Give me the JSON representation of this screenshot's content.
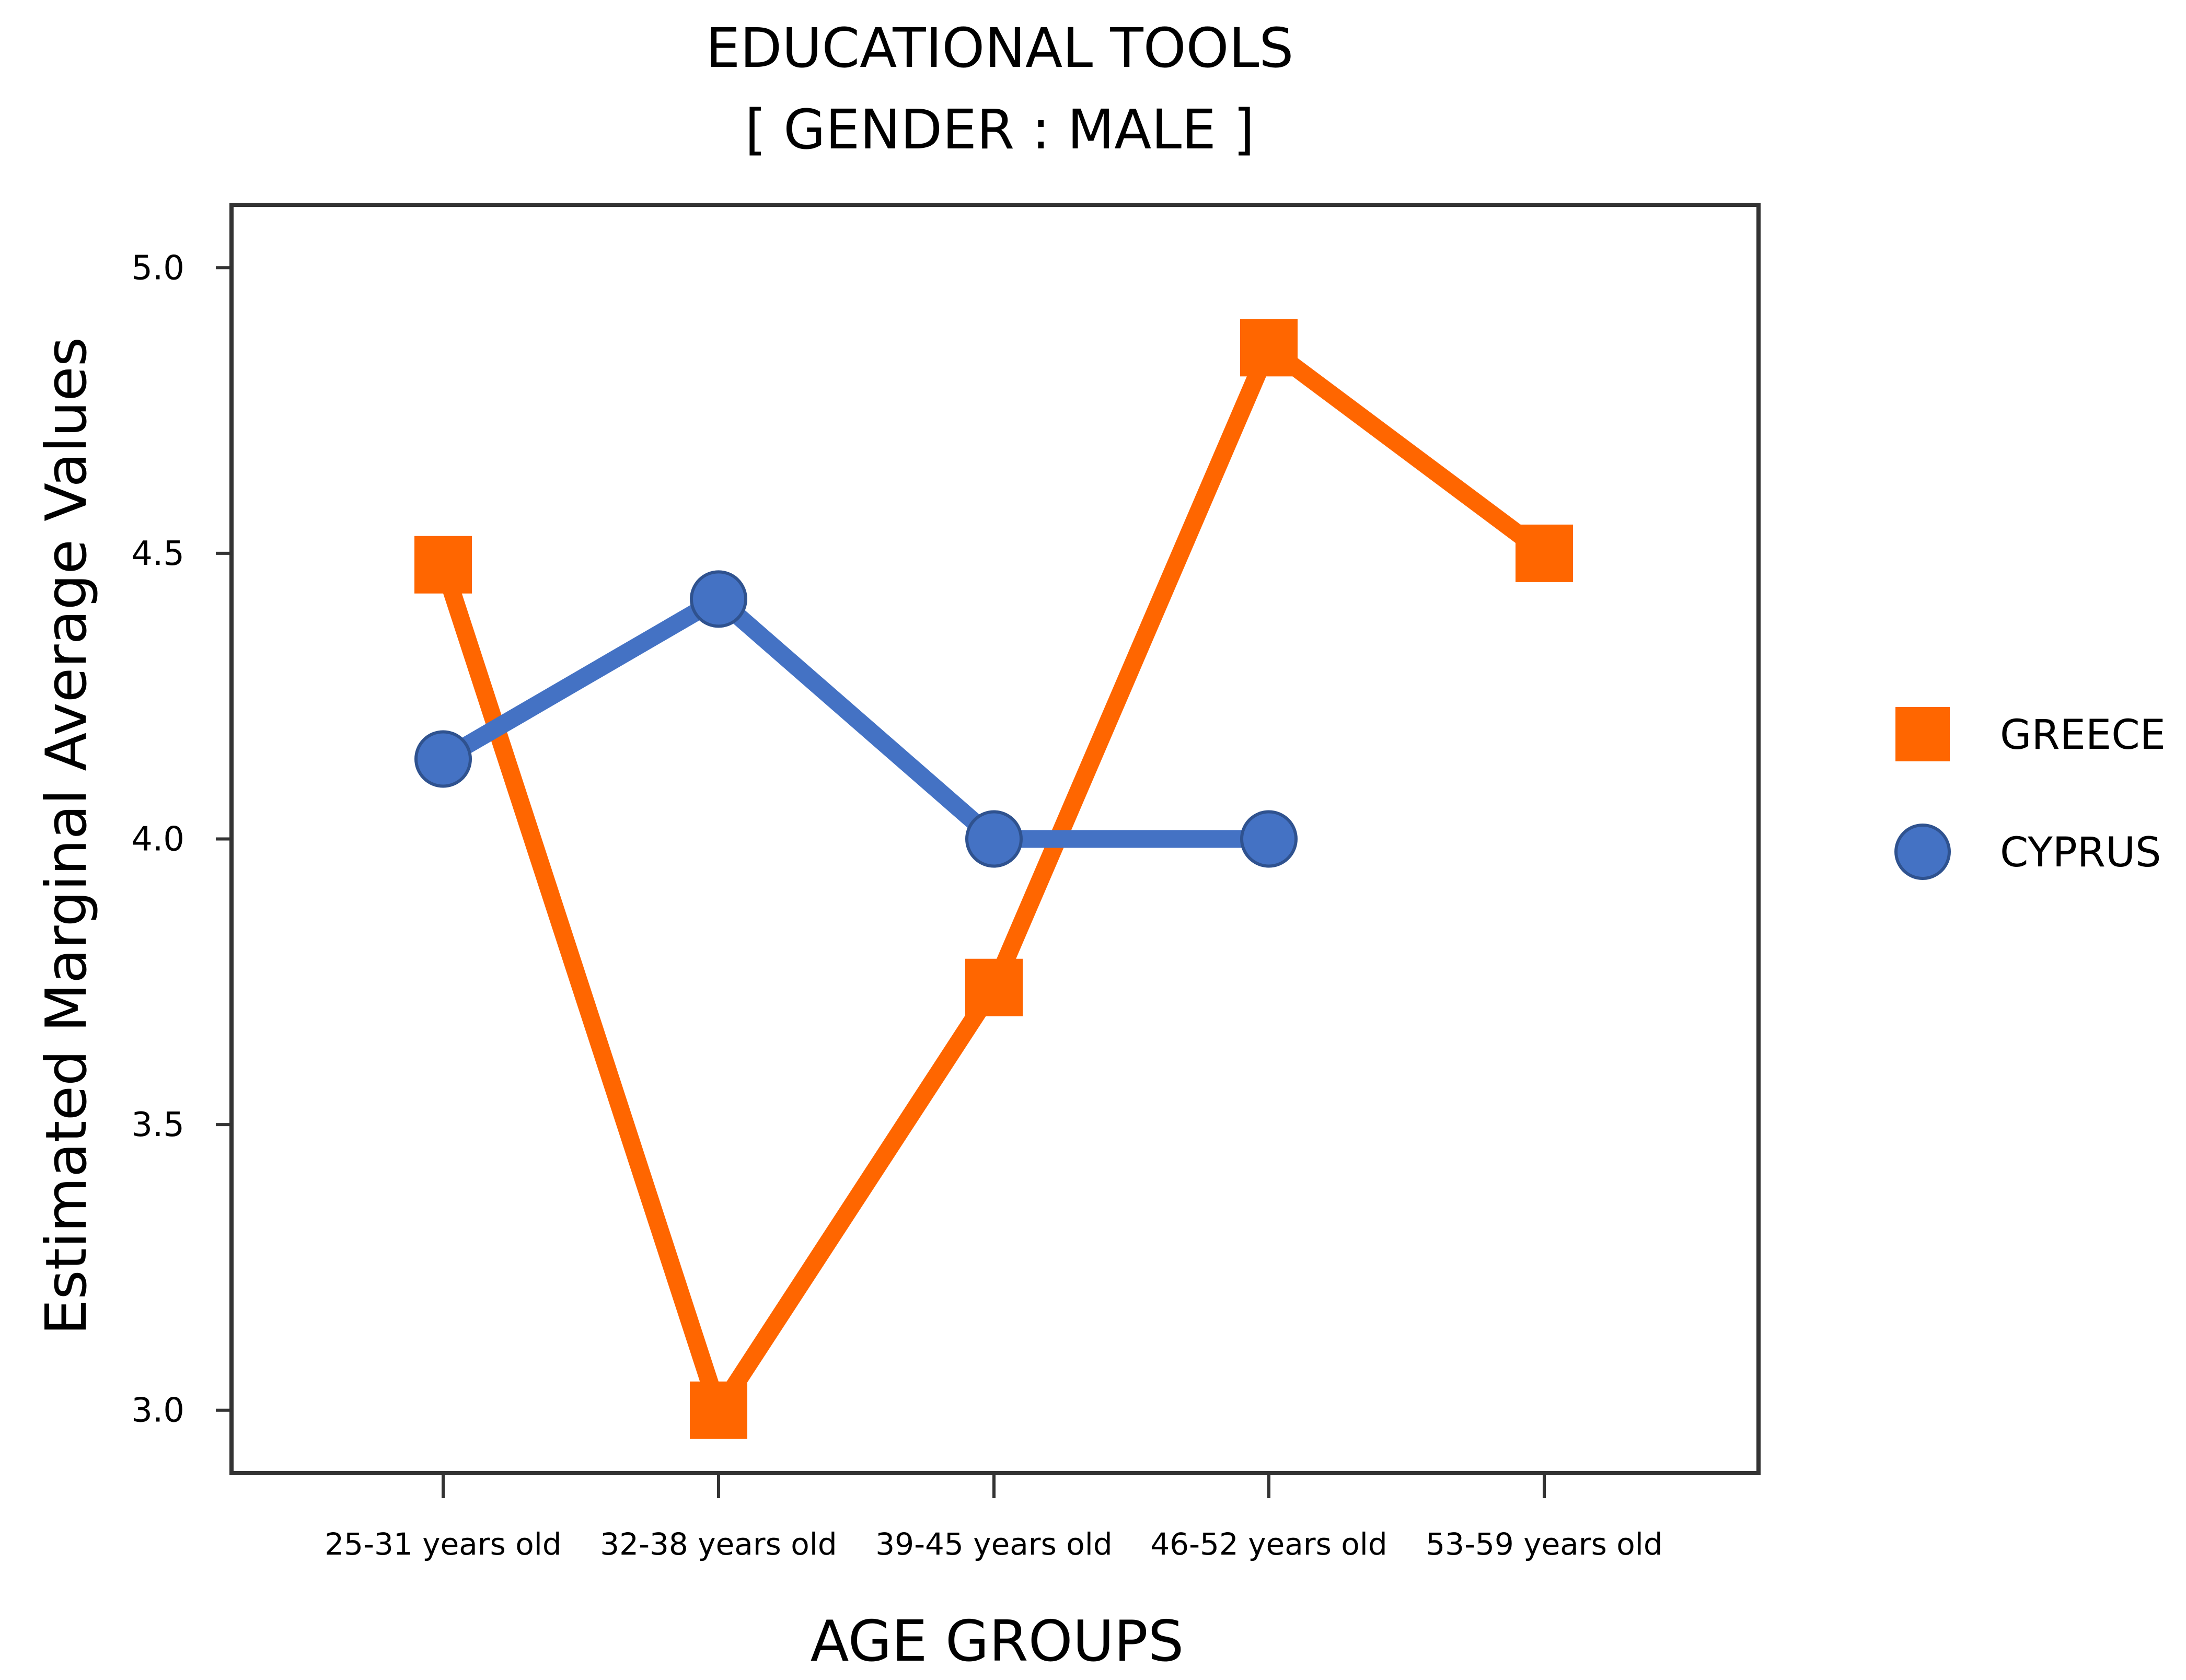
{
  "chart_data": {
    "type": "line",
    "title": "EDUCATIONAL TOOLS",
    "subtitle": "[ GENDER : MALE ]",
    "xlabel": "AGE GROUPS",
    "ylabel": "Estimated Marginal Average Values",
    "categories": [
      "25-31 years old",
      "32-38 years old",
      "39-45 years old",
      "46-52 years old",
      "53-59 years old"
    ],
    "ylim": [
      2.89,
      5.11
    ],
    "yticks": [
      "3.0",
      "3.5",
      "4.0",
      "4.5",
      "5.0"
    ],
    "ytick_values": [
      3.0,
      3.5,
      4.0,
      4.5,
      5.0
    ],
    "grid": false,
    "legend_position": "right",
    "series": [
      {
        "name": "GREECE",
        "marker": "square",
        "color": "#ff6600",
        "values": [
          4.48,
          3.0,
          3.74,
          4.86,
          4.5
        ]
      },
      {
        "name": "CYPRUS",
        "marker": "circle",
        "color": "#4472c4",
        "values": [
          4.14,
          4.42,
          4.0,
          4.0,
          null
        ]
      }
    ]
  }
}
